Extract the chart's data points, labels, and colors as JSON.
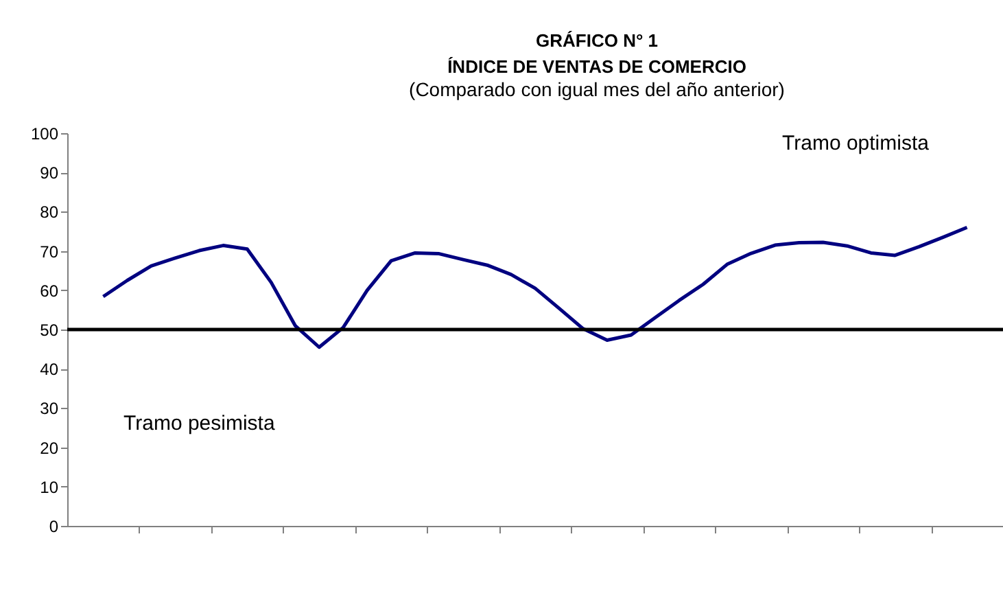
{
  "chart_data": {
    "type": "line",
    "title": "GRÁFICO N° 1\nÍNDICE DE VENTAS  DE COMERCIO",
    "subtitle": "(Comparado con igual mes del año anterior)",
    "categories": [
      null,
      null,
      null,
      null,
      null,
      null,
      null,
      null,
      null,
      null,
      null,
      null,
      null,
      null,
      null,
      null,
      null,
      null,
      null,
      null,
      null,
      null,
      null,
      null,
      null,
      null,
      null,
      null,
      null,
      null,
      null,
      null,
      null,
      null,
      null,
      null,
      null
    ],
    "series": [
      {
        "color": "#000080",
        "values": [
          58.4,
          62.5,
          66.2,
          68.2,
          70.1,
          71.4,
          70.5,
          62,
          51,
          45.5,
          50.5,
          60,
          67.5,
          69.5,
          69.3,
          67.8,
          66.4,
          64,
          60.5,
          55.4,
          50.2,
          47.3,
          48.6,
          53,
          57.4,
          61.5,
          66.6,
          69.4,
          71.5,
          72.1,
          72.2,
          71.3,
          69.5,
          68.9,
          71.1,
          73.5,
          76
        ]
      }
    ],
    "ylim": [
      0,
      100
    ],
    "yticks": [
      0,
      10,
      20,
      30,
      40,
      50,
      60,
      70,
      80,
      90,
      100
    ],
    "tick_labels": "y",
    "grid": false,
    "marker": "none",
    "line_style": "solid",
    "ref_lines": [
      {
        "axis": "y",
        "value": 50,
        "color": "#000000"
      }
    ],
    "annotations": [
      "Tramo optimista",
      "Tramo pesimista"
    ]
  }
}
